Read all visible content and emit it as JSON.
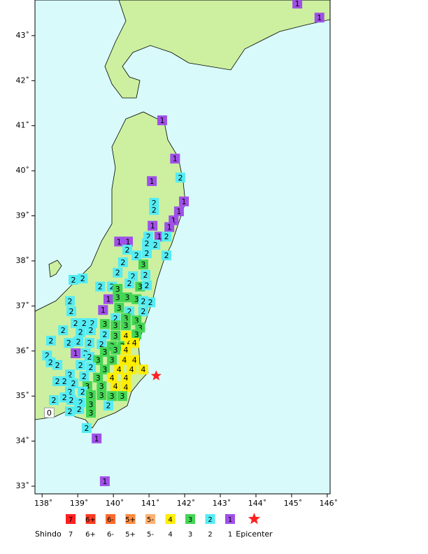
{
  "map": {
    "xlim": [
      137.8,
      146.08
    ],
    "ylim": [
      32.83,
      43.79
    ],
    "xticks": [
      {
        "value": 138,
        "label": "138˚"
      },
      {
        "value": 139,
        "label": "139˚"
      },
      {
        "value": 140,
        "label": "140˚"
      },
      {
        "value": 141,
        "label": "141˚"
      },
      {
        "value": 142,
        "label": "142˚"
      },
      {
        "value": 143,
        "label": "143˚"
      },
      {
        "value": 144,
        "label": "144˚"
      },
      {
        "value": 145,
        "label": "145˚"
      },
      {
        "value": 146,
        "label": "146˚"
      }
    ],
    "yticks": [
      {
        "value": 33,
        "label": "33˚"
      },
      {
        "value": 34,
        "label": "34˚"
      },
      {
        "value": 35,
        "label": "35˚"
      },
      {
        "value": 36,
        "label": "36˚"
      },
      {
        "value": 37,
        "label": "37˚"
      },
      {
        "value": 38,
        "label": "38˚"
      },
      {
        "value": 39,
        "label": "39˚"
      },
      {
        "value": 40,
        "label": "40˚"
      },
      {
        "value": 41,
        "label": "41˚"
      },
      {
        "value": 42,
        "label": "42˚"
      },
      {
        "value": 43,
        "label": "43˚"
      }
    ],
    "intensity_colors": {
      "0": "#ffffff",
      "1": "#a050e8",
      "2": "#55ecf4",
      "3": "#44d655",
      "4": "#ffee00"
    },
    "epicenter": {
      "lon": 141.2,
      "lat": 35.45,
      "color": "#ff2020"
    },
    "stations": [
      [
        145.16,
        43.71,
        1
      ],
      [
        145.78,
        43.4,
        1
      ],
      [
        141.37,
        41.12,
        1
      ],
      [
        141.73,
        40.27,
        1
      ],
      [
        141.88,
        39.85,
        2
      ],
      [
        141.08,
        39.77,
        1
      ],
      [
        141.98,
        39.32,
        1
      ],
      [
        141.14,
        39.29,
        2
      ],
      [
        141.14,
        39.13,
        2
      ],
      [
        141.84,
        39.1,
        1
      ],
      [
        141.69,
        38.9,
        1
      ],
      [
        141.57,
        38.75,
        1
      ],
      [
        141.1,
        38.78,
        1
      ],
      [
        141.29,
        38.54,
        1
      ],
      [
        140.98,
        38.54,
        2
      ],
      [
        141.49,
        38.54,
        2
      ],
      [
        140.16,
        38.43,
        1
      ],
      [
        140.41,
        38.43,
        1
      ],
      [
        140.39,
        38.25,
        2
      ],
      [
        140.94,
        38.39,
        2
      ],
      [
        141.18,
        38.36,
        2
      ],
      [
        140.65,
        38.12,
        2
      ],
      [
        140.94,
        38.17,
        2
      ],
      [
        141.49,
        38.12,
        2
      ],
      [
        140.27,
        37.97,
        2
      ],
      [
        140.84,
        37.92,
        3
      ],
      [
        140.12,
        37.74,
        2
      ],
      [
        138.88,
        37.58,
        2
      ],
      [
        139.14,
        37.61,
        2
      ],
      [
        140.55,
        37.66,
        2
      ],
      [
        140.9,
        37.69,
        2
      ],
      [
        139.63,
        37.43,
        2
      ],
      [
        139.96,
        37.43,
        2
      ],
      [
        140.12,
        37.38,
        3
      ],
      [
        140.45,
        37.5,
        2
      ],
      [
        140.75,
        37.43,
        3
      ],
      [
        140.94,
        37.46,
        2
      ],
      [
        138.78,
        37.11,
        2
      ],
      [
        139.86,
        37.15,
        1
      ],
      [
        140.12,
        37.19,
        3
      ],
      [
        140.39,
        37.19,
        3
      ],
      [
        140.65,
        37.15,
        3
      ],
      [
        140.84,
        37.11,
        2
      ],
      [
        141.04,
        37.08,
        2
      ],
      [
        138.82,
        36.88,
        2
      ],
      [
        139.71,
        36.91,
        1
      ],
      [
        140.16,
        36.96,
        3
      ],
      [
        140.45,
        36.88,
        2
      ],
      [
        140.84,
        36.88,
        2
      ],
      [
        140.06,
        36.73,
        2
      ],
      [
        140.35,
        36.73,
        3
      ],
      [
        140.65,
        36.68,
        3
      ],
      [
        138.94,
        36.62,
        2
      ],
      [
        139.18,
        36.62,
        2
      ],
      [
        139.41,
        36.62,
        2
      ],
      [
        139.76,
        36.6,
        3
      ],
      [
        140.06,
        36.57,
        3
      ],
      [
        140.35,
        36.57,
        3
      ],
      [
        140.75,
        36.52,
        3
      ],
      [
        138.59,
        36.46,
        2
      ],
      [
        139.08,
        36.42,
        2
      ],
      [
        139.37,
        36.46,
        2
      ],
      [
        139.76,
        36.37,
        2
      ],
      [
        140.06,
        36.34,
        3
      ],
      [
        140.35,
        36.34,
        4
      ],
      [
        140.65,
        36.37,
        3
      ],
      [
        138.25,
        36.23,
        2
      ],
      [
        138.75,
        36.18,
        2
      ],
      [
        139.02,
        36.21,
        2
      ],
      [
        139.33,
        36.18,
        2
      ],
      [
        139.67,
        36.15,
        2
      ],
      [
        139.96,
        36.11,
        3
      ],
      [
        140.25,
        36.11,
        3
      ],
      [
        140.45,
        36.18,
        4
      ],
      [
        140.59,
        36.18,
        4
      ],
      [
        138.94,
        35.95,
        1
      ],
      [
        139.22,
        35.95,
        2
      ],
      [
        139.76,
        35.98,
        3
      ],
      [
        140.06,
        36.03,
        3
      ],
      [
        140.35,
        36.03,
        4
      ],
      [
        138.14,
        35.9,
        2
      ],
      [
        138.24,
        35.75,
        2
      ],
      [
        138.43,
        35.69,
        2
      ],
      [
        139.33,
        35.87,
        2
      ],
      [
        139.57,
        35.8,
        3
      ],
      [
        139.96,
        35.8,
        3
      ],
      [
        140.31,
        35.8,
        4
      ],
      [
        140.59,
        35.8,
        4
      ],
      [
        139.08,
        35.69,
        2
      ],
      [
        139.37,
        35.64,
        2
      ],
      [
        139.76,
        35.59,
        3
      ],
      [
        140.16,
        35.59,
        4
      ],
      [
        140.51,
        35.59,
        4
      ],
      [
        140.84,
        35.59,
        4
      ],
      [
        138.78,
        35.48,
        2
      ],
      [
        139.18,
        35.44,
        2
      ],
      [
        139.57,
        35.41,
        3
      ],
      [
        139.96,
        35.41,
        4
      ],
      [
        140.35,
        35.41,
        4
      ],
      [
        138.43,
        35.33,
        2
      ],
      [
        138.63,
        35.33,
        2
      ],
      [
        138.88,
        35.28,
        2
      ],
      [
        139.27,
        35.22,
        3
      ],
      [
        139.67,
        35.22,
        3
      ],
      [
        140.06,
        35.22,
        4
      ],
      [
        140.35,
        35.2,
        4
      ],
      [
        138.78,
        35.1,
        2
      ],
      [
        139.14,
        35.1,
        2
      ],
      [
        139.37,
        35.02,
        3
      ],
      [
        139.67,
        35.02,
        3
      ],
      [
        139.96,
        35.0,
        3
      ],
      [
        140.25,
        35.0,
        3
      ],
      [
        138.33,
        34.91,
        2
      ],
      [
        138.63,
        34.97,
        2
      ],
      [
        138.82,
        34.91,
        2
      ],
      [
        139.08,
        34.86,
        2
      ],
      [
        139.37,
        34.82,
        3
      ],
      [
        139.86,
        34.79,
        2
      ],
      [
        138.78,
        34.66,
        2
      ],
      [
        139.04,
        34.71,
        2
      ],
      [
        139.37,
        34.63,
        3
      ],
      [
        138.2,
        34.63,
        0
      ],
      [
        139.25,
        34.29,
        2
      ],
      [
        139.53,
        34.06,
        1
      ],
      [
        139.76,
        33.11,
        1
      ]
    ]
  },
  "legend": {
    "title": "Shindo",
    "items": [
      {
        "symbol": "7",
        "label": "7",
        "color": "#ff2020"
      },
      {
        "symbol": "6+",
        "label": "6+",
        "color": "#ff3a20"
      },
      {
        "symbol": "6-",
        "label": "6-",
        "color": "#ff6a30"
      },
      {
        "symbol": "5+",
        "label": "5+",
        "color": "#ff8c40"
      },
      {
        "symbol": "5-",
        "label": "5-",
        "color": "#ffb070"
      },
      {
        "symbol": "4",
        "label": "4",
        "color": "#ffee00"
      },
      {
        "symbol": "3",
        "label": "3",
        "color": "#44d655"
      },
      {
        "symbol": "2",
        "label": "2",
        "color": "#55ecf4"
      },
      {
        "symbol": "1",
        "label": "1",
        "color": "#a050e8"
      }
    ],
    "epicenter_label": "Epicenter"
  }
}
